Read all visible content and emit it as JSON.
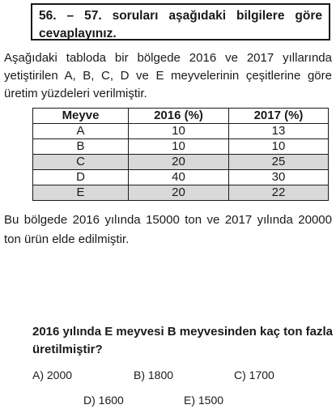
{
  "header": {
    "text": "56. – 57. soruları aşağıdaki bilgilere göre cevaplayınız."
  },
  "intro": {
    "text": "Aşağıdaki tabloda bir bölgede 2016 ve 2017 yıllarında yetiştirilen A, B, C, D ve E meyvelerinin çeşitlerine göre üretim yüzdeleri verilmiştir."
  },
  "table": {
    "headers": [
      "Meyve",
      "2016 (%)",
      "2017 (%)"
    ],
    "rows": [
      [
        "A",
        "10",
        "13"
      ],
      [
        "B",
        "10",
        "10"
      ],
      [
        "C",
        "20",
        "25"
      ],
      [
        "D",
        "40",
        "30"
      ],
      [
        "E",
        "20",
        "22"
      ]
    ],
    "shaded_color": "#d9d9d9"
  },
  "info": {
    "text": "Bu bölgede 2016 yılında 15000 ton ve 2017 yılında 20000 ton ürün elde edilmiştir."
  },
  "question": {
    "text": "2016 yılında E meyvesi B meyvesinden kaç ton fazla üretilmiştir?"
  },
  "options": [
    "A) 2000",
    "B) 1800",
    "C) 1700",
    "D) 1600",
    "E) 1500"
  ]
}
